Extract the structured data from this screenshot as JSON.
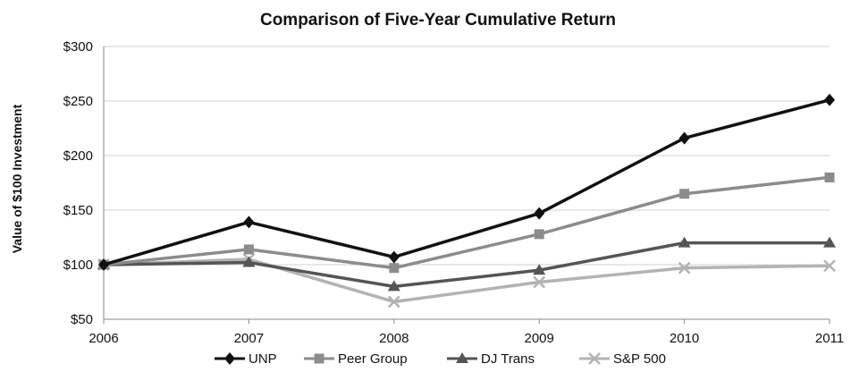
{
  "chart_data": {
    "type": "line",
    "title": "Comparison of Five-Year Cumulative Return",
    "xlabel": "",
    "ylabel": "Value of $100 Investment",
    "categories": [
      "2006",
      "2007",
      "2008",
      "2009",
      "2010",
      "2011"
    ],
    "yticks": [
      "$50",
      "$100",
      "$150",
      "$200",
      "$250",
      "$300"
    ],
    "ylim": [
      50,
      300
    ],
    "grid": true,
    "legend_position": "bottom",
    "series": [
      {
        "name": "UNP",
        "marker": "diamond",
        "color": "#111111",
        "values": [
          100,
          139,
          107,
          147,
          216,
          251
        ]
      },
      {
        "name": "Peer Group",
        "marker": "square",
        "color": "#8c8c8c",
        "values": [
          100,
          114,
          97,
          128,
          165,
          180
        ]
      },
      {
        "name": "DJ Trans",
        "marker": "triangle",
        "color": "#555555",
        "values": [
          100,
          102,
          80,
          95,
          120,
          120
        ]
      },
      {
        "name": "S&P 500",
        "marker": "x",
        "color": "#b3b3b3",
        "values": [
          100,
          105,
          66,
          84,
          97,
          99
        ]
      }
    ]
  }
}
